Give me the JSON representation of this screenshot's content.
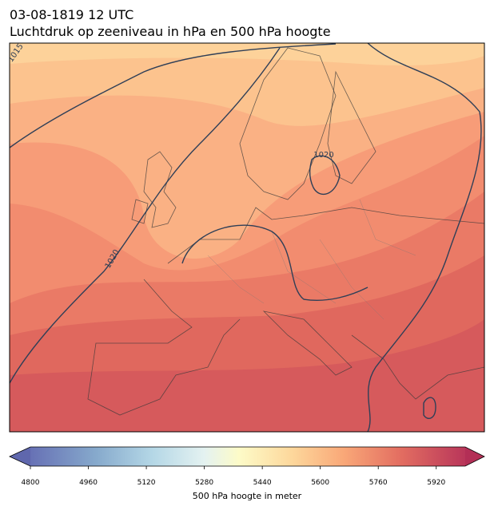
{
  "title": "03-08-1819 12 UTC",
  "subtitle": "Luchtdruk op zeeniveau in hPa en 500 hPa hoogte",
  "contour_labels": [
    "1015",
    "1020",
    "1020"
  ],
  "colorbar": {
    "label": "500 hPa hoogte in meter",
    "lim": [
      4800,
      6000
    ],
    "ticks": [
      4800,
      4960,
      5120,
      5280,
      5440,
      5600,
      5760,
      5920
    ]
  }
}
